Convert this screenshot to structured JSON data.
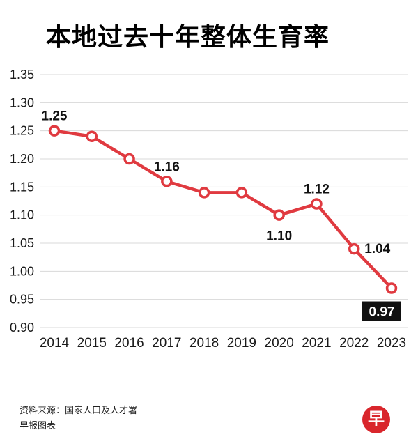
{
  "title": "本地过去十年整体生育率",
  "footer": {
    "source": "资料来源：国家人口及人才署",
    "credit": "早报图表",
    "logo_char": "早"
  },
  "colors": {
    "line": "#e03a40",
    "grid": "#d8d8d8",
    "axis_text": "#1a1a1a",
    "label_text": "#111111",
    "boxed_label_bg": "#111111",
    "boxed_label_text": "#ffffff",
    "logo_bg": "#d9262c"
  },
  "chart_data": {
    "type": "line",
    "title": "本地过去十年整体生育率",
    "x": [
      "2014",
      "2015",
      "2016",
      "2017",
      "2018",
      "2019",
      "2020",
      "2021",
      "2022",
      "2023"
    ],
    "values": [
      1.25,
      1.24,
      1.2,
      1.16,
      1.14,
      1.14,
      1.1,
      1.12,
      1.04,
      0.97
    ],
    "ylim": [
      0.9,
      1.35
    ],
    "ytick_step": 0.05,
    "yticks": [
      "0.90",
      "0.95",
      "1.00",
      "1.05",
      "1.10",
      "1.15",
      "1.20",
      "1.25",
      "1.30",
      "1.35"
    ],
    "xlabel": "",
    "ylabel": "",
    "grid": "horizontal",
    "legend": "none",
    "point_labels": [
      {
        "index": 0,
        "text": "1.25",
        "pos": "above"
      },
      {
        "index": 3,
        "text": "1.16",
        "pos": "above"
      },
      {
        "index": 6,
        "text": "1.10",
        "pos": "below"
      },
      {
        "index": 7,
        "text": "1.12",
        "pos": "above"
      },
      {
        "index": 8,
        "text": "1.04",
        "pos": "right"
      },
      {
        "index": 9,
        "text": "0.97",
        "pos": "boxed-below"
      }
    ]
  }
}
